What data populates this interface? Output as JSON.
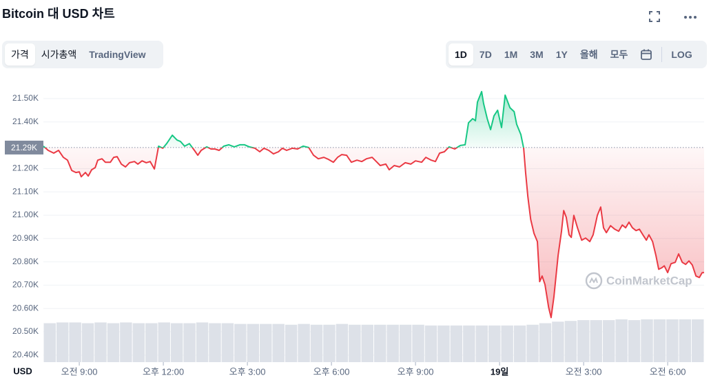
{
  "header": {
    "title": "Bitcoin 대 USD 차트",
    "tabs": [
      "가격",
      "시가총액",
      "TradingView"
    ],
    "ranges": [
      "1D",
      "7D",
      "1M",
      "3M",
      "1Y",
      "올해",
      "모두"
    ],
    "log": "LOG"
  },
  "chart_data": {
    "type": "line",
    "x": [
      7.72,
      7.89,
      8.09,
      8.26,
      8.43,
      8.58,
      8.73,
      8.88,
      9.0,
      9.07,
      9.22,
      9.32,
      9.44,
      9.57,
      9.66,
      9.81,
      9.93,
      10.11,
      10.23,
      10.35,
      10.5,
      10.65,
      10.79,
      10.97,
      11.09,
      11.24,
      11.39,
      11.53,
      11.68,
      11.83,
      11.98,
      12.12,
      12.32,
      12.49,
      12.61,
      12.76,
      12.93,
      13.11,
      13.23,
      13.35,
      13.55,
      13.7,
      13.84,
      13.99,
      14.16,
      14.34,
      14.53,
      14.73,
      14.9,
      15.07,
      15.27,
      15.44,
      15.59,
      15.76,
      15.93,
      16.11,
      16.25,
      16.4,
      16.6,
      16.79,
      16.99,
      17.19,
      17.36,
      17.53,
      17.73,
      17.9,
      18.07,
      18.22,
      18.37,
      18.54,
      18.71,
      18.91,
      19.08,
      19.25,
      19.45,
      19.6,
      19.74,
      19.94,
      20.06,
      20.24,
      20.43,
      20.63,
      20.83,
      21.0,
      21.22,
      21.37,
      21.56,
      21.71,
      21.86,
      22.03,
      22.2,
      22.4,
      22.6,
      22.77,
      22.89,
      23.04,
      23.14,
      23.21,
      23.36,
      23.43,
      23.56,
      23.68,
      23.8,
      23.93,
      24.07,
      24.2,
      24.37,
      24.52,
      24.61,
      24.76,
      24.86,
      24.93,
      25.01,
      25.11,
      25.23,
      25.35,
      25.43,
      25.52,
      25.62,
      25.75,
      25.84,
      25.94,
      26.09,
      26.21,
      26.29,
      26.38,
      26.48,
      26.56,
      26.65,
      26.78,
      26.93,
      27.07,
      27.22,
      27.34,
      27.49,
      27.61,
      27.71,
      27.81,
      27.96,
      28.11,
      28.25,
      28.38,
      28.5,
      28.62,
      28.74,
      28.87,
      28.99,
      29.14,
      29.24,
      29.33,
      29.46,
      29.58,
      29.68,
      29.78,
      29.88,
      30.0,
      30.12,
      30.27,
      30.39,
      30.52,
      30.64,
      30.76,
      30.88,
      31.01,
      31.13,
      31.23,
      31.3
    ],
    "values": [
      21296,
      21278,
      21266,
      21278,
      21248,
      21236,
      21192,
      21183,
      21186,
      21165,
      21183,
      21168,
      21195,
      21204,
      21236,
      21242,
      21227,
      21227,
      21248,
      21251,
      21219,
      21207,
      21225,
      21230,
      21219,
      21233,
      21225,
      21230,
      21198,
      21296,
      21287,
      21307,
      21343,
      21322,
      21316,
      21296,
      21307,
      21278,
      21257,
      21278,
      21293,
      21284,
      21284,
      21278,
      21296,
      21302,
      21293,
      21302,
      21302,
      21293,
      21287,
      21272,
      21287,
      21278,
      21263,
      21272,
      21287,
      21278,
      21287,
      21284,
      21296,
      21290,
      21257,
      21242,
      21248,
      21239,
      21227,
      21248,
      21260,
      21257,
      21227,
      21236,
      21230,
      21242,
      21248,
      21230,
      21213,
      21219,
      21195,
      21213,
      21207,
      21225,
      21219,
      21233,
      21227,
      21248,
      21236,
      21230,
      21266,
      21272,
      21293,
      21284,
      21299,
      21302,
      21396,
      21414,
      21405,
      21485,
      21530,
      21479,
      21414,
      21367,
      21426,
      21450,
      21376,
      21515,
      21461,
      21444,
      21390,
      21346,
      21287,
      21183,
      21079,
      20982,
      20922,
      20887,
      20715,
      20739,
      20703,
      20605,
      20561,
      20650,
      20828,
      20931,
      21020,
      20991,
      20916,
      20905,
      20999,
      20946,
      20893,
      20902,
      20887,
      20916,
      20999,
      21035,
      20946,
      20925,
      20955,
      20940,
      20931,
      20958,
      20946,
      20970,
      20946,
      20934,
      20940,
      20911,
      20893,
      20916,
      20887,
      20828,
      20768,
      20774,
      20783,
      20754,
      20792,
      20798,
      20834,
      20798,
      20789,
      20804,
      20786,
      20739,
      20733,
      20754,
      20754
    ],
    "reference": {
      "value": 21290,
      "label": "21.29K"
    },
    "up_color": "#16c784",
    "down_color": "#ea3943",
    "volume": {
      "color": "#dde1e8",
      "values": [
        51,
        52,
        52,
        51,
        52,
        51,
        52,
        51,
        51,
        52,
        51,
        51,
        52,
        51,
        51,
        50,
        50,
        50,
        50,
        49,
        50,
        49,
        49,
        50,
        49,
        49,
        49,
        49,
        49,
        49,
        48,
        48,
        48,
        48,
        48,
        48,
        48,
        48,
        49,
        51,
        53,
        54,
        55,
        55,
        55,
        56,
        55,
        56,
        56,
        56,
        56,
        56
      ]
    },
    "xlim": [
      7.72,
      31.3
    ],
    "xticks": [
      {
        "value": 9,
        "label": "오전 9:00"
      },
      {
        "value": 12,
        "label": "오후 12:00"
      },
      {
        "value": 15,
        "label": "오후 3:00"
      },
      {
        "value": 18,
        "label": "오후 6:00"
      },
      {
        "value": 21,
        "label": "오후 9:00"
      },
      {
        "value": 24,
        "label": "19일"
      },
      {
        "value": 27,
        "label": "오전 3:00"
      },
      {
        "value": 30,
        "label": "오전 6:00"
      }
    ],
    "ylim": [
      20370,
      21540
    ],
    "yticks": [
      {
        "value": 21500,
        "label": "21.50K"
      },
      {
        "value": 21400,
        "label": "21.40K"
      },
      {
        "value": 21200,
        "label": "21.20K"
      },
      {
        "value": 21100,
        "label": "21.10K"
      },
      {
        "value": 21000,
        "label": "21.00K"
      },
      {
        "value": 20900,
        "label": "20.90K"
      },
      {
        "value": 20800,
        "label": "20.80K"
      },
      {
        "value": 20700,
        "label": "20.70K"
      },
      {
        "value": 20600,
        "label": "20.60K"
      },
      {
        "value": 20500,
        "label": "20.50K"
      },
      {
        "value": 20400,
        "label": "20.40K"
      }
    ],
    "grid": true,
    "currency": "USD",
    "watermark": "CoinMarketCap"
  }
}
